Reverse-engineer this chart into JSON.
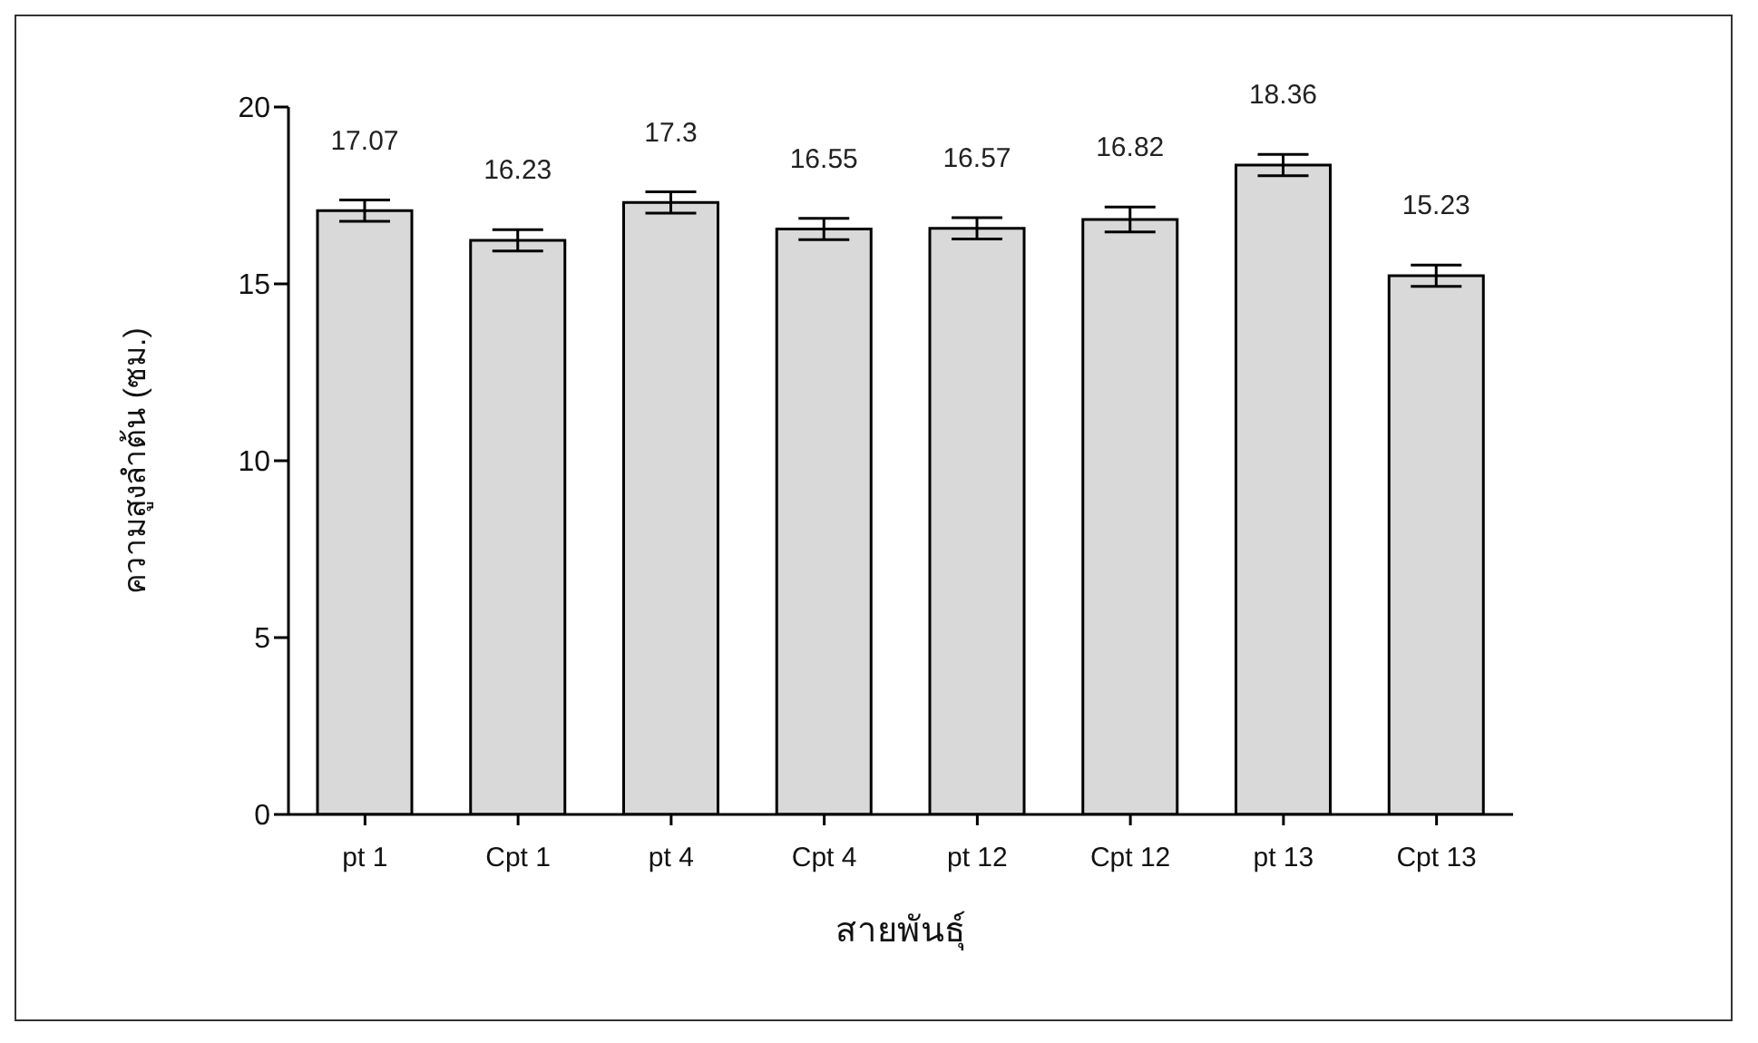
{
  "chart_data": {
    "type": "bar",
    "xlabel": "สายพันธุ์",
    "ylabel": "ความสูงลำต้น (ซม.)",
    "categories": [
      "pt 1",
      "Cpt 1",
      "pt 4",
      "Cpt 4",
      "pt 12",
      "Cpt 12",
      "pt 13",
      "Cpt 13"
    ],
    "values": [
      17.07,
      16.23,
      17.3,
      16.55,
      16.57,
      16.82,
      18.36,
      15.23
    ],
    "errors": [
      0.3,
      0.3,
      0.3,
      0.3,
      0.3,
      0.35,
      0.3,
      0.3
    ],
    "color": "#d9d9d9",
    "ylim": [
      0,
      20
    ],
    "yticks": [
      0,
      5,
      10,
      15,
      20
    ],
    "data_labels": true,
    "grid": false,
    "legend": false
  }
}
